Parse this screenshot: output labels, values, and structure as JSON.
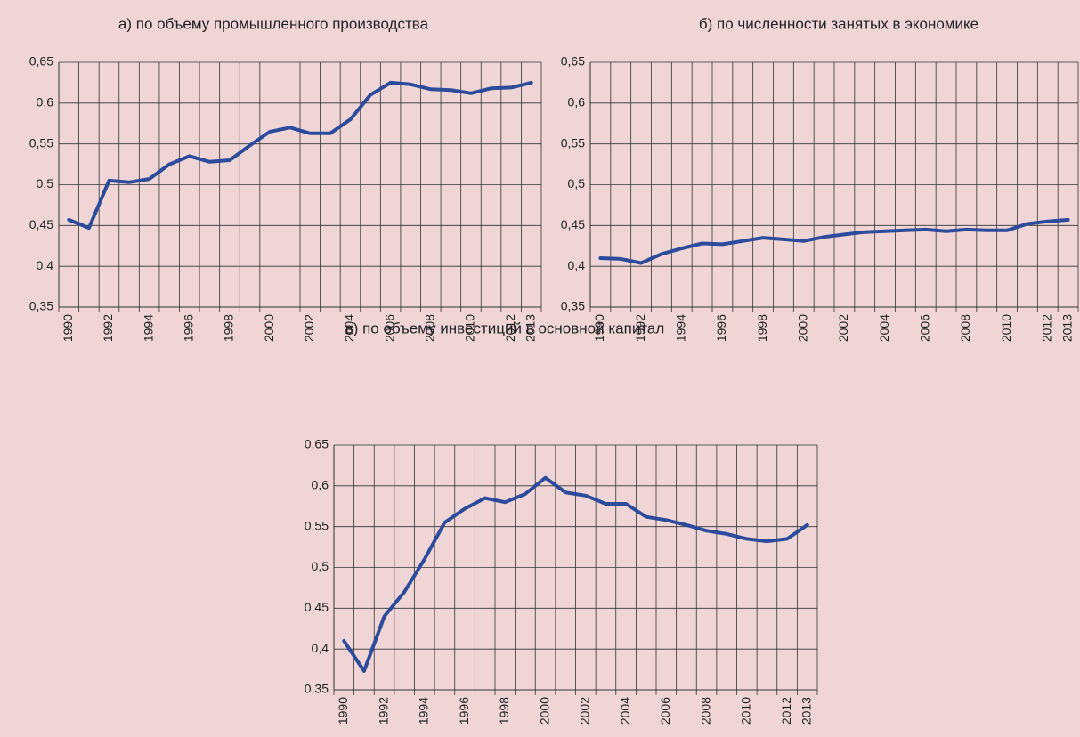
{
  "chart_data": [
    {
      "type": "line",
      "title": "а) по объему промышленного производства",
      "categories": [
        "1990",
        null,
        "1992",
        null,
        "1994",
        null,
        "1996",
        null,
        "1998",
        null,
        "2000",
        null,
        "2002",
        null,
        "2004",
        null,
        "2006",
        null,
        "2008",
        null,
        "2010",
        null,
        "2012",
        "2013"
      ],
      "series": [
        {
          "color": "#2d4b9b",
          "values": [
            0.457,
            0.447,
            0.505,
            0.503,
            0.507,
            0.525,
            0.535,
            0.528,
            0.53,
            0.548,
            0.565,
            0.57,
            0.563,
            0.563,
            0.58,
            0.61,
            0.625,
            0.623,
            0.617,
            0.616,
            0.612,
            0.618,
            0.619,
            0.625
          ]
        }
      ],
      "ylim": [
        0.35,
        0.65
      ],
      "yticks": [
        {
          "value": 0.35,
          "label": "0,35"
        },
        {
          "value": 0.4,
          "label": "0,4"
        },
        {
          "value": 0.45,
          "label": "0,45"
        },
        {
          "value": 0.5,
          "label": "0,5"
        },
        {
          "value": 0.55,
          "label": "0,55"
        },
        {
          "value": 0.6,
          "label": "0,6"
        },
        {
          "value": 0.65,
          "label": "0,65"
        }
      ],
      "grid": true
    },
    {
      "type": "line",
      "title": "б) по численности занятых в экономике",
      "categories": [
        "1990",
        null,
        "1992",
        null,
        "1994",
        null,
        "1996",
        null,
        "1998",
        null,
        "2000",
        null,
        "2002",
        null,
        "2004",
        null,
        "2006",
        null,
        "2008",
        null,
        "2010",
        null,
        "2012",
        "2013"
      ],
      "series": [
        {
          "color": "#2d4b9b",
          "values": [
            0.41,
            0.409,
            0.404,
            0.415,
            0.422,
            0.428,
            0.427,
            0.431,
            0.435,
            0.433,
            0.431,
            0.436,
            0.439,
            0.442,
            0.443,
            0.444,
            0.445,
            0.443,
            0.445,
            0.444,
            0.444,
            0.452,
            0.455,
            0.457
          ]
        }
      ],
      "ylim": [
        0.35,
        0.65
      ],
      "yticks": [
        {
          "value": 0.35,
          "label": "0,35"
        },
        {
          "value": 0.4,
          "label": "0,4"
        },
        {
          "value": 0.45,
          "label": "0,45"
        },
        {
          "value": 0.5,
          "label": "0,5"
        },
        {
          "value": 0.55,
          "label": "0,55"
        },
        {
          "value": 0.6,
          "label": "0,6"
        },
        {
          "value": 0.65,
          "label": "0,65"
        }
      ],
      "grid": true
    },
    {
      "type": "line",
      "title": "в) по объему инвестиций в основной капитал",
      "categories": [
        "1990",
        null,
        "1992",
        null,
        "1994",
        null,
        "1996",
        null,
        "1998",
        null,
        "2000",
        null,
        "2002",
        null,
        "2004",
        null,
        "2006",
        null,
        "2008",
        null,
        "2010",
        null,
        "2012",
        "2013"
      ],
      "series": [
        {
          "color": "#2d4b9b",
          "values": [
            0.41,
            0.373,
            0.44,
            0.47,
            0.51,
            0.555,
            0.572,
            0.585,
            0.58,
            0.59,
            0.61,
            0.592,
            0.588,
            0.578,
            0.578,
            0.562,
            0.558,
            0.552,
            0.545,
            0.541,
            0.535,
            0.532,
            0.535,
            0.552
          ]
        }
      ],
      "ylim": [
        0.35,
        0.65
      ],
      "yticks": [
        {
          "value": 0.35,
          "label": "0,35"
        },
        {
          "value": 0.4,
          "label": "0,4"
        },
        {
          "value": 0.45,
          "label": "0,45"
        },
        {
          "value": 0.5,
          "label": "0,5"
        },
        {
          "value": 0.55,
          "label": "0,55"
        },
        {
          "value": 0.6,
          "label": "0,6"
        },
        {
          "value": 0.65,
          "label": "0,65"
        }
      ],
      "grid": true
    }
  ]
}
